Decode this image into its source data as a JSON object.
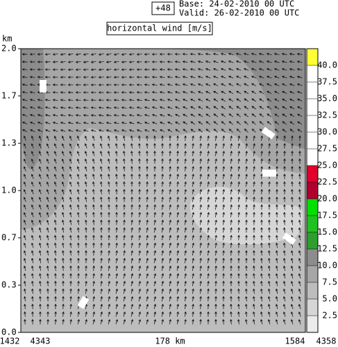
{
  "chart_data": {
    "type": "contour",
    "forecast_step": "+48",
    "base": "Base: 24-02-2010  00 UTC",
    "valid": "Valid: 26-02-2010  00 UTC",
    "title": "horizontal wind [m/s]",
    "y_label": "km",
    "ylim": [
      0,
      2
    ],
    "yticks": [
      {
        "value": 0,
        "label": "0.0"
      },
      {
        "value": 0.333,
        "label": "0.3"
      },
      {
        "value": 0.667,
        "label": "0.7"
      },
      {
        "value": 1,
        "label": "1.0"
      },
      {
        "value": 1.333,
        "label": "1.3"
      },
      {
        "value": 1.667,
        "label": "1.7"
      },
      {
        "value": 2,
        "label": "2.0"
      }
    ],
    "x_labels": [
      "1432",
      "4343",
      "178 km",
      "1584",
      "4358"
    ],
    "colorbar": {
      "bounds": [
        0,
        2.5,
        5,
        7.5,
        10,
        12.5,
        15,
        17.5,
        20,
        22.5,
        25,
        27.5,
        30,
        32.5,
        35,
        37.5,
        40,
        42.5
      ],
      "colors": [
        "#ebebeb",
        "#d6d6d6",
        "#bdbdbd",
        "#a6a6a6",
        "#8c8c8c",
        "#2e9e2e",
        "#1fc21f",
        "#00e000",
        "#b00030",
        "#e0002a",
        "#ffffff",
        "#ffffff",
        "#ffffff",
        "#ffffff",
        "#ffffff",
        "#ffffff",
        "#ffff33"
      ],
      "ticks": [
        2.5,
        {
          "value": 5,
          "label": "5.0"
        },
        7.5,
        {
          "value": 10,
          "label": "10.0"
        },
        12.5,
        {
          "value": 15,
          "label": "15.0"
        },
        17.5,
        {
          "value": 20,
          "label": "20.0"
        },
        22.5,
        {
          "value": 25,
          "label": "25.0"
        },
        27.5,
        {
          "value": 30,
          "label": "30.0"
        },
        32.5,
        {
          "value": 35,
          "label": "35.0"
        },
        37.5,
        {
          "value": 40,
          "label": "40.0"
        }
      ]
    }
  }
}
